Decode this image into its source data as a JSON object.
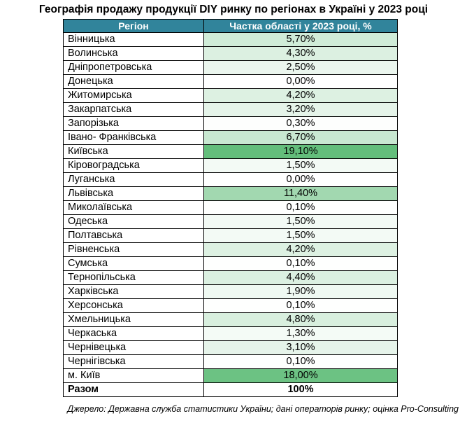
{
  "title": "Географія продажу продукції DIY ринку по регіонах в Україні у 2023 році",
  "table": {
    "headers": [
      "Регіон",
      "Частка області у 2023 році, %"
    ],
    "rows": [
      {
        "region": "Вінницька",
        "value": "5,70%",
        "share": 5.7
      },
      {
        "region": "Волинська",
        "value": "4,30%",
        "share": 4.3
      },
      {
        "region": "Дніпропетровська",
        "value": "2,50%",
        "share": 2.5
      },
      {
        "region": "Донецька",
        "value": "0,00%",
        "share": 0.0
      },
      {
        "region": "Житомирська",
        "value": "4,20%",
        "share": 4.2
      },
      {
        "region": "Закарпатська",
        "value": "3,20%",
        "share": 3.2
      },
      {
        "region": "Запорізька",
        "value": "0,30%",
        "share": 0.3
      },
      {
        "region": "Івано- Франківська",
        "value": "6,70%",
        "share": 6.7
      },
      {
        "region": "Київська",
        "value": "19,10%",
        "share": 19.1
      },
      {
        "region": "Кіровоградська",
        "value": "1,50%",
        "share": 1.5
      },
      {
        "region": "Луганська",
        "value": "0,00%",
        "share": 0.0
      },
      {
        "region": "Львівська",
        "value": "11,40%",
        "share": 11.4
      },
      {
        "region": "Миколаївська",
        "value": "0,10%",
        "share": 0.1
      },
      {
        "region": "Одеська",
        "value": "1,50%",
        "share": 1.5
      },
      {
        "region": "Полтавська",
        "value": "1,50%",
        "share": 1.5
      },
      {
        "region": "Рівненська",
        "value": "4,20%",
        "share": 4.2
      },
      {
        "region": "Сумська",
        "value": "0,10%",
        "share": 0.1
      },
      {
        "region": "Тернопільська",
        "value": "4,40%",
        "share": 4.4
      },
      {
        "region": "Харківська",
        "value": "1,90%",
        "share": 1.9
      },
      {
        "region": "Херсонська",
        "value": "0,10%",
        "share": 0.1
      },
      {
        "region": "Хмельницька",
        "value": "4,80%",
        "share": 4.8
      },
      {
        "region": "Черкаська",
        "value": "1,30%",
        "share": 1.3
      },
      {
        "region": "Чернівецька",
        "value": "3,10%",
        "share": 3.1
      },
      {
        "region": "Чернігівська",
        "value": "0,10%",
        "share": 0.1
      },
      {
        "region": "м. Київ",
        "value": "18,00%",
        "share": 18.0
      }
    ],
    "total": {
      "label": "Разом",
      "value": "100%"
    }
  },
  "colors": {
    "header_bg": "#31849b",
    "header_text": "#ffffff",
    "scale_low": "#ffffff",
    "scale_high": "#63be7b"
  },
  "source": "Джерело: Державна служба статистики України; дані операторів ринку; оцінка Pro-Consulting"
}
